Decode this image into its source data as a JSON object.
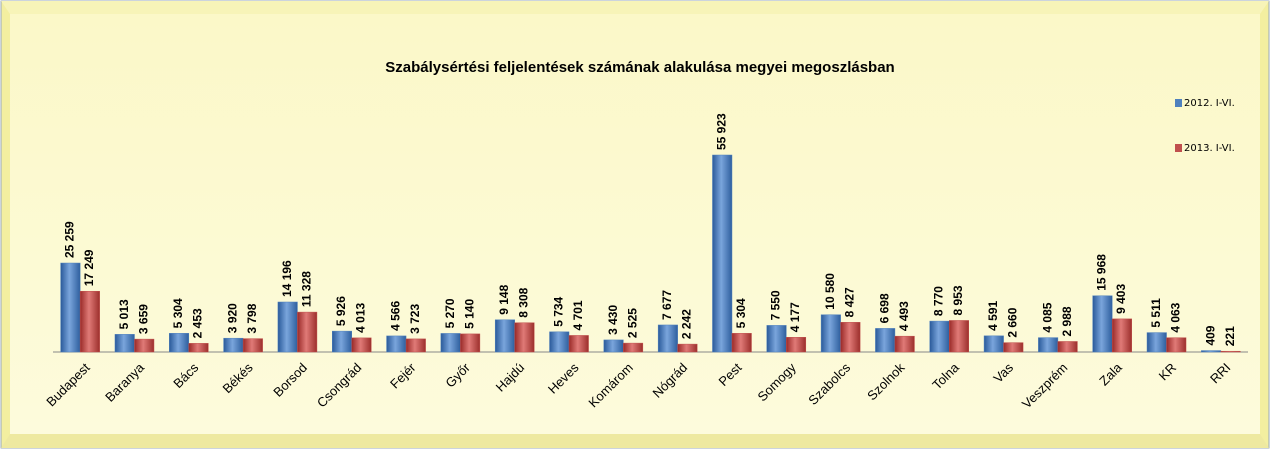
{
  "chart_data": {
    "type": "bar",
    "title": "Szabálysértési feljelentések számának alakulása megyei megoszlásban",
    "categories": [
      "Budapest",
      "Baranya",
      "Bács",
      "Békés",
      "Borsod",
      "Csongrád",
      "Fejér",
      "Győr",
      "Hajdú",
      "Heves",
      "Komárom",
      "Nógrád",
      "Pest",
      "Somogy",
      "Szabolcs",
      "Szolnok",
      "Tolna",
      "Vas",
      "Veszprém",
      "Zala",
      "KR",
      "RRI"
    ],
    "legend": "right",
    "series": [
      {
        "name": "2012. I-VI.",
        "color": "#4f81bd",
        "values": [
          25259,
          5013,
          5304,
          3920,
          14196,
          5926,
          4566,
          5270,
          9148,
          5734,
          3430,
          7677,
          55923,
          7550,
          10580,
          6698,
          8770,
          4591,
          4085,
          15968,
          5511,
          409
        ],
        "value_labels": [
          "25 259",
          "5 013",
          "5 304",
          "3 920",
          "14 196",
          "5 926",
          "4 566",
          "5 270",
          "9 148",
          "5 734",
          "3 430",
          "7 677",
          "55 923",
          "7 550",
          "10 580",
          "6 698",
          "8 770",
          "4 591",
          "4 085",
          "15 968",
          "5 511",
          "409"
        ]
      },
      {
        "name": "2013. I-VI.",
        "color": "#c0504d",
        "values": [
          17249,
          3659,
          2453,
          3798,
          11328,
          4013,
          3723,
          5140,
          8308,
          4701,
          2525,
          2242,
          5304,
          4177,
          8427,
          4493,
          8953,
          2660,
          2988,
          9403,
          4063,
          221
        ],
        "value_labels": [
          "17 249",
          "3 659",
          "2 453",
          "3 798",
          "11 328",
          "4 013",
          "3 723",
          "5 140",
          "8 308",
          "4 701",
          "2 525",
          "2 242",
          "5 304",
          "4 177",
          "8 427",
          "4 493",
          "8 953",
          "2 660",
          "2 988",
          "9 403",
          "4 063",
          "221"
        ]
      }
    ]
  }
}
